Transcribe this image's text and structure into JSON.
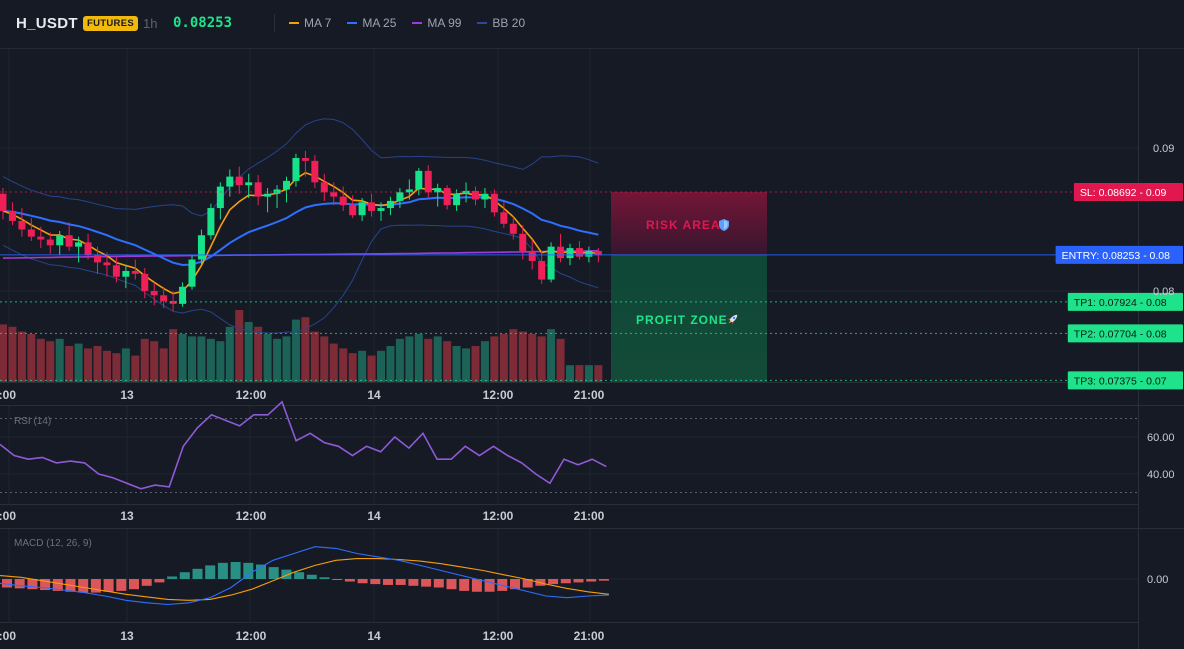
{
  "header": {
    "symbol": "H_USDT",
    "badge": "FUTURES",
    "interval": "1h",
    "last_price": "0.08253",
    "legend": [
      {
        "label": "MA 7",
        "color": "#f59e0b"
      },
      {
        "label": "MA 25",
        "color": "#2f6fff"
      },
      {
        "label": "MA 99",
        "color": "#a03cd6"
      },
      {
        "label": "BB 20",
        "color": "#2b4a9a"
      }
    ]
  },
  "price_axis": {
    "ticks": [
      {
        "label": "0.09",
        "value": 0.09
      },
      {
        "label": "0.08",
        "value": 0.08
      }
    ]
  },
  "levels": {
    "sl": {
      "label": "SL: 0.08692",
      "axis": "0.09",
      "value": 0.08692,
      "color": "#e0184f"
    },
    "entry": {
      "label": "ENTRY: 0.08253",
      "axis": "0.08",
      "value": 0.08253,
      "color": "#2962ff"
    },
    "tp1": {
      "label": "TP1: 0.07924",
      "axis": "0.08",
      "value": 0.07924,
      "color": "#1ee38a"
    },
    "tp2": {
      "label": "TP2: 0.07704",
      "axis": "0.08",
      "value": 0.07704,
      "color": "#1ee38a"
    },
    "tp3": {
      "label": "TP3: 0.07375",
      "axis": "0.07",
      "value": 0.07375,
      "color": "#1ee38a"
    }
  },
  "zones": {
    "risk_label": "RISK AREA",
    "risk_icon": "shield-icon",
    "profit_label": "PROFIT ZONE",
    "profit_icon": "rocket-icon"
  },
  "time_axis": {
    "labels": [
      "2:00",
      "13",
      "12:00",
      "14",
      "12:00",
      "21:00"
    ]
  },
  "rsi": {
    "title": "RSI (14)",
    "ticks": [
      "60.00",
      "40.00"
    ],
    "upper_band": 70,
    "lower_band": 30
  },
  "macd": {
    "title": "MACD (12, 26, 9)",
    "ticks": [
      "0.00"
    ]
  },
  "chart_data": {
    "type": "candlestick",
    "candles": [
      {
        "o": 0.0868,
        "h": 0.0872,
        "l": 0.085,
        "c": 0.0856
      },
      {
        "o": 0.0856,
        "h": 0.0862,
        "l": 0.0846,
        "c": 0.0849
      },
      {
        "o": 0.0849,
        "h": 0.0858,
        "l": 0.0838,
        "c": 0.0843
      },
      {
        "o": 0.0843,
        "h": 0.0851,
        "l": 0.0835,
        "c": 0.0838
      },
      {
        "o": 0.0838,
        "h": 0.0845,
        "l": 0.083,
        "c": 0.0836
      },
      {
        "o": 0.0836,
        "h": 0.0841,
        "l": 0.0826,
        "c": 0.0832
      },
      {
        "o": 0.0832,
        "h": 0.0842,
        "l": 0.0825,
        "c": 0.0839
      },
      {
        "o": 0.0839,
        "h": 0.0848,
        "l": 0.0828,
        "c": 0.0831
      },
      {
        "o": 0.0831,
        "h": 0.0838,
        "l": 0.082,
        "c": 0.0834
      },
      {
        "o": 0.0834,
        "h": 0.084,
        "l": 0.0822,
        "c": 0.0825
      },
      {
        "o": 0.0825,
        "h": 0.0831,
        "l": 0.0812,
        "c": 0.082
      },
      {
        "o": 0.082,
        "h": 0.0827,
        "l": 0.081,
        "c": 0.0818
      },
      {
        "o": 0.0818,
        "h": 0.0824,
        "l": 0.0806,
        "c": 0.081
      },
      {
        "o": 0.081,
        "h": 0.0818,
        "l": 0.0802,
        "c": 0.0814
      },
      {
        "o": 0.0814,
        "h": 0.0822,
        "l": 0.0808,
        "c": 0.0812
      },
      {
        "o": 0.0812,
        "h": 0.0816,
        "l": 0.0795,
        "c": 0.08
      },
      {
        "o": 0.08,
        "h": 0.0806,
        "l": 0.079,
        "c": 0.0797
      },
      {
        "o": 0.0797,
        "h": 0.0803,
        "l": 0.0788,
        "c": 0.0793
      },
      {
        "o": 0.0793,
        "h": 0.08,
        "l": 0.0786,
        "c": 0.0791
      },
      {
        "o": 0.0791,
        "h": 0.0806,
        "l": 0.0789,
        "c": 0.0803
      },
      {
        "o": 0.0803,
        "h": 0.0825,
        "l": 0.0801,
        "c": 0.0822
      },
      {
        "o": 0.0822,
        "h": 0.0843,
        "l": 0.0818,
        "c": 0.0839
      },
      {
        "o": 0.0839,
        "h": 0.0861,
        "l": 0.0836,
        "c": 0.0858
      },
      {
        "o": 0.0858,
        "h": 0.0876,
        "l": 0.085,
        "c": 0.0873
      },
      {
        "o": 0.0873,
        "h": 0.0885,
        "l": 0.0866,
        "c": 0.088
      },
      {
        "o": 0.088,
        "h": 0.0887,
        "l": 0.0868,
        "c": 0.0874
      },
      {
        "o": 0.0874,
        "h": 0.0882,
        "l": 0.0865,
        "c": 0.0876
      },
      {
        "o": 0.0876,
        "h": 0.0881,
        "l": 0.086,
        "c": 0.0866
      },
      {
        "o": 0.0866,
        "h": 0.0872,
        "l": 0.0855,
        "c": 0.0868
      },
      {
        "o": 0.0868,
        "h": 0.0874,
        "l": 0.0858,
        "c": 0.0871
      },
      {
        "o": 0.0871,
        "h": 0.088,
        "l": 0.0862,
        "c": 0.0877
      },
      {
        "o": 0.0877,
        "h": 0.0896,
        "l": 0.0873,
        "c": 0.0893
      },
      {
        "o": 0.0893,
        "h": 0.0898,
        "l": 0.088,
        "c": 0.0891
      },
      {
        "o": 0.0891,
        "h": 0.0895,
        "l": 0.0872,
        "c": 0.0876
      },
      {
        "o": 0.0876,
        "h": 0.0882,
        "l": 0.0863,
        "c": 0.0869
      },
      {
        "o": 0.0869,
        "h": 0.0876,
        "l": 0.086,
        "c": 0.0866
      },
      {
        "o": 0.0866,
        "h": 0.0873,
        "l": 0.0856,
        "c": 0.086
      },
      {
        "o": 0.086,
        "h": 0.0867,
        "l": 0.0851,
        "c": 0.0853
      },
      {
        "o": 0.0853,
        "h": 0.0865,
        "l": 0.0849,
        "c": 0.0862
      },
      {
        "o": 0.0862,
        "h": 0.0868,
        "l": 0.0852,
        "c": 0.0856
      },
      {
        "o": 0.0856,
        "h": 0.0862,
        "l": 0.0849,
        "c": 0.0858
      },
      {
        "o": 0.0858,
        "h": 0.0866,
        "l": 0.0853,
        "c": 0.0863
      },
      {
        "o": 0.0863,
        "h": 0.0872,
        "l": 0.0858,
        "c": 0.0869
      },
      {
        "o": 0.0869,
        "h": 0.0878,
        "l": 0.0864,
        "c": 0.0871
      },
      {
        "o": 0.0871,
        "h": 0.0886,
        "l": 0.0867,
        "c": 0.0884
      },
      {
        "o": 0.0884,
        "h": 0.0888,
        "l": 0.0865,
        "c": 0.0869
      },
      {
        "o": 0.0869,
        "h": 0.0875,
        "l": 0.0859,
        "c": 0.0872
      },
      {
        "o": 0.0872,
        "h": 0.0874,
        "l": 0.0857,
        "c": 0.086
      },
      {
        "o": 0.086,
        "h": 0.0871,
        "l": 0.0856,
        "c": 0.0868
      },
      {
        "o": 0.0868,
        "h": 0.0876,
        "l": 0.0862,
        "c": 0.087
      },
      {
        "o": 0.087,
        "h": 0.0873,
        "l": 0.086,
        "c": 0.0864
      },
      {
        "o": 0.0864,
        "h": 0.0872,
        "l": 0.0858,
        "c": 0.0868
      },
      {
        "o": 0.0868,
        "h": 0.0871,
        "l": 0.0852,
        "c": 0.0855
      },
      {
        "o": 0.0855,
        "h": 0.0862,
        "l": 0.0844,
        "c": 0.0847
      },
      {
        "o": 0.0847,
        "h": 0.0852,
        "l": 0.0836,
        "c": 0.084
      },
      {
        "o": 0.084,
        "h": 0.0846,
        "l": 0.0822,
        "c": 0.0828
      },
      {
        "o": 0.0828,
        "h": 0.0836,
        "l": 0.0815,
        "c": 0.0821
      },
      {
        "o": 0.0821,
        "h": 0.0828,
        "l": 0.0805,
        "c": 0.0808
      },
      {
        "o": 0.0808,
        "h": 0.0834,
        "l": 0.0806,
        "c": 0.0831
      },
      {
        "o": 0.0831,
        "h": 0.084,
        "l": 0.082,
        "c": 0.0823
      },
      {
        "o": 0.0823,
        "h": 0.0833,
        "l": 0.0818,
        "c": 0.083
      },
      {
        "o": 0.083,
        "h": 0.0835,
        "l": 0.0822,
        "c": 0.0824
      },
      {
        "o": 0.0824,
        "h": 0.0831,
        "l": 0.082,
        "c": 0.0828
      },
      {
        "o": 0.0828,
        "h": 0.083,
        "l": 0.082,
        "c": 0.0825
      }
    ],
    "volume": [
      48,
      46,
      42,
      40,
      36,
      34,
      36,
      30,
      32,
      28,
      30,
      26,
      24,
      28,
      22,
      36,
      34,
      28,
      44,
      40,
      38,
      38,
      36,
      34,
      46,
      60,
      50,
      46,
      40,
      36,
      38,
      52,
      54,
      42,
      38,
      32,
      28,
      24,
      26,
      22,
      26,
      30,
      36,
      38,
      40,
      36,
      38,
      34,
      30,
      28,
      30,
      34,
      38,
      40,
      44,
      42,
      40,
      38,
      44,
      36,
      14,
      14,
      14,
      14
    ],
    "rsi": [
      56,
      50,
      48,
      49,
      46,
      47,
      46,
      40,
      38,
      35,
      32,
      34,
      33,
      55,
      65,
      72,
      69,
      66,
      72,
      72,
      79,
      58,
      62,
      57,
      55,
      50,
      55,
      52,
      60,
      54,
      62,
      48,
      48,
      55,
      50,
      55,
      50,
      46,
      40,
      35,
      48,
      45,
      48,
      44
    ],
    "macd": [
      -5e-05,
      -8e-05,
      -0.0001,
      -0.00013,
      -0.00016,
      -0.0002,
      -0.00025,
      -0.00028,
      -0.0003,
      -0.00028,
      -0.00022,
      -0.0001,
      8e-05,
      0.00022,
      0.0003,
      0.00038,
      0.00036,
      0.0003,
      0.00026,
      0.00022,
      0.00016,
      0.0001,
      4e-05,
      -2e-05,
      -8e-05,
      -0.00014,
      -0.0002,
      -0.00022,
      -0.0002,
      -0.00019
    ],
    "macd_signal": [
      4e-05,
      2e-05,
      -2e-05,
      -6e-05,
      -0.0001,
      -0.00014,
      -0.00018,
      -0.00021,
      -0.00024,
      -0.00025,
      -0.00024,
      -0.00019,
      -0.00012,
      -2e-05,
      8e-05,
      0.00016,
      0.00022,
      0.00024,
      0.00024,
      0.00023,
      0.00021,
      0.00018,
      0.00014,
      0.0001,
      5e-05,
      0.0,
      -6e-05,
      -0.00011,
      -0.00015,
      -0.00018
    ],
    "macd_hist": [
      -0.0001,
      -0.00011,
      -0.00012,
      -0.00013,
      -0.00014,
      -0.00015,
      -0.00016,
      -0.00016,
      -0.00015,
      -0.00014,
      -0.00012,
      -8e-05,
      -4e-05,
      3e-05,
      8e-05,
      0.00012,
      0.00016,
      0.00019,
      0.0002,
      0.00019,
      0.00017,
      0.00014,
      0.00011,
      8e-05,
      5e-05,
      2e-05,
      -1e-05,
      -3e-05,
      -5e-05,
      -6e-05,
      -7e-05,
      -7e-05,
      -8e-05,
      -9e-05,
      -0.0001,
      -0.00012,
      -0.00014,
      -0.00015,
      -0.00015,
      -0.00014,
      -0.00012,
      -0.0001,
      -8e-05,
      -6e-05,
      -5e-05,
      -4e-05,
      -3e-05,
      -2e-05
    ]
  }
}
